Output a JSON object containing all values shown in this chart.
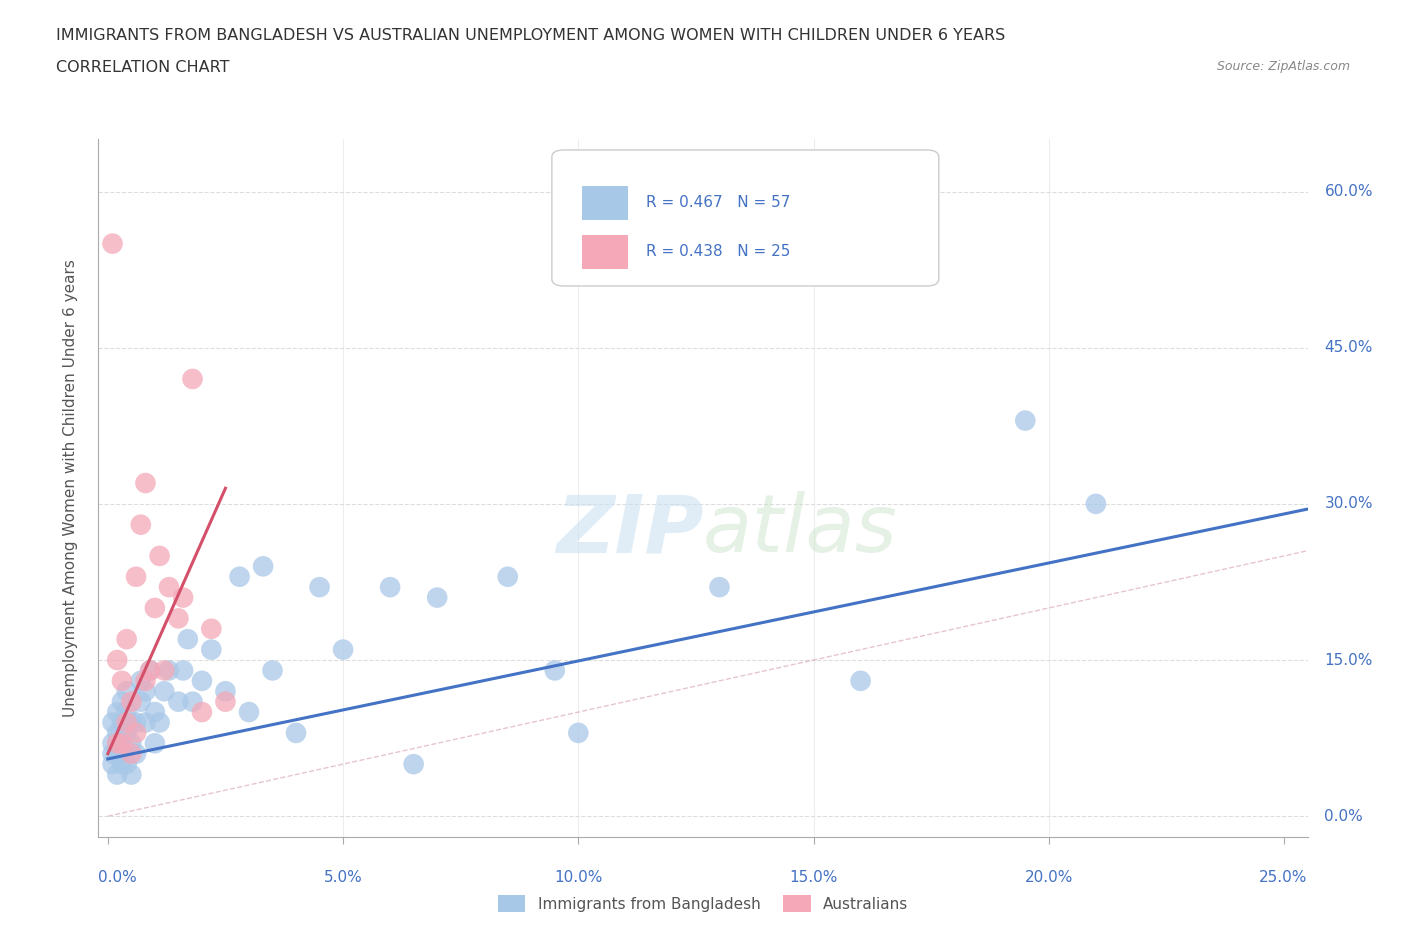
{
  "title_line1": "IMMIGRANTS FROM BANGLADESH VS AUSTRALIAN UNEMPLOYMENT AMONG WOMEN WITH CHILDREN UNDER 6 YEARS",
  "title_line2": "CORRELATION CHART",
  "source_text": "Source: ZipAtlas.com",
  "ylabel": "Unemployment Among Women with Children Under 6 years",
  "xlim": [
    -0.002,
    0.255
  ],
  "ylim": [
    -0.02,
    0.65
  ],
  "xticks": [
    0.0,
    0.05,
    0.1,
    0.15,
    0.2,
    0.25
  ],
  "yticks": [
    0.0,
    0.15,
    0.3,
    0.45,
    0.6
  ],
  "xtick_labels_bottom": [
    "0.0%",
    "",
    "",
    "",
    "",
    "25.0%"
  ],
  "xtick_labels_inner": [
    "",
    "5.0%",
    "10.0%",
    "15.0%",
    "20.0%",
    ""
  ],
  "ytick_labels": [
    "0.0%",
    "15.0%",
    "30.0%",
    "45.0%",
    "60.0%"
  ],
  "blue_color": "#a8c8e8",
  "pink_color": "#f4a8b8",
  "blue_line_color": "#4472c4",
  "pink_line_color": "#d4506a",
  "ref_line_color": "#d4a0b0",
  "legend_R1": "R = 0.467",
  "legend_N1": "N = 57",
  "legend_R2": "R = 0.438",
  "legend_N2": "N = 25",
  "legend_label1": "Immigrants from Bangladesh",
  "legend_label2": "Australians",
  "watermark_zip": "ZIP",
  "watermark_atlas": "atlas",
  "blue_scatter_x": [
    0.001,
    0.001,
    0.001,
    0.001,
    0.002,
    0.002,
    0.002,
    0.002,
    0.002,
    0.003,
    0.003,
    0.003,
    0.003,
    0.003,
    0.004,
    0.004,
    0.004,
    0.004,
    0.005,
    0.005,
    0.005,
    0.006,
    0.006,
    0.007,
    0.007,
    0.008,
    0.008,
    0.009,
    0.01,
    0.01,
    0.011,
    0.012,
    0.013,
    0.015,
    0.016,
    0.017,
    0.018,
    0.02,
    0.022,
    0.025,
    0.028,
    0.03,
    0.033,
    0.035,
    0.04,
    0.045,
    0.05,
    0.06,
    0.065,
    0.07,
    0.085,
    0.095,
    0.1,
    0.13,
    0.16,
    0.195,
    0.21
  ],
  "blue_scatter_y": [
    0.06,
    0.05,
    0.07,
    0.09,
    0.04,
    0.06,
    0.08,
    0.1,
    0.07,
    0.05,
    0.07,
    0.09,
    0.11,
    0.06,
    0.05,
    0.08,
    0.1,
    0.12,
    0.04,
    0.07,
    0.09,
    0.06,
    0.09,
    0.11,
    0.13,
    0.09,
    0.12,
    0.14,
    0.07,
    0.1,
    0.09,
    0.12,
    0.14,
    0.11,
    0.14,
    0.17,
    0.11,
    0.13,
    0.16,
    0.12,
    0.23,
    0.1,
    0.24,
    0.14,
    0.08,
    0.22,
    0.16,
    0.22,
    0.05,
    0.21,
    0.23,
    0.14,
    0.08,
    0.22,
    0.13,
    0.38,
    0.3
  ],
  "pink_scatter_x": [
    0.001,
    0.002,
    0.002,
    0.003,
    0.003,
    0.004,
    0.004,
    0.005,
    0.005,
    0.006,
    0.006,
    0.007,
    0.008,
    0.008,
    0.009,
    0.01,
    0.011,
    0.012,
    0.013,
    0.015,
    0.016,
    0.018,
    0.02,
    0.022,
    0.025
  ],
  "pink_scatter_y": [
    0.55,
    0.07,
    0.15,
    0.07,
    0.13,
    0.09,
    0.17,
    0.06,
    0.11,
    0.08,
    0.23,
    0.28,
    0.13,
    0.32,
    0.14,
    0.2,
    0.25,
    0.14,
    0.22,
    0.19,
    0.21,
    0.42,
    0.1,
    0.18,
    0.11
  ],
  "blue_line_x": [
    0.0,
    0.255
  ],
  "blue_line_y": [
    0.055,
    0.295
  ],
  "pink_line_x": [
    0.0,
    0.025
  ],
  "pink_line_y": [
    0.06,
    0.315
  ],
  "ref_line_x": [
    0.0,
    0.255
  ],
  "ref_line_y": [
    0.0,
    0.255
  ],
  "background_color": "#ffffff",
  "grid_color": "#dddddd",
  "title_color": "#333333",
  "axis_label_color": "#555555",
  "tick_color": "#4472c4",
  "legend_text_color": "#4472c4"
}
